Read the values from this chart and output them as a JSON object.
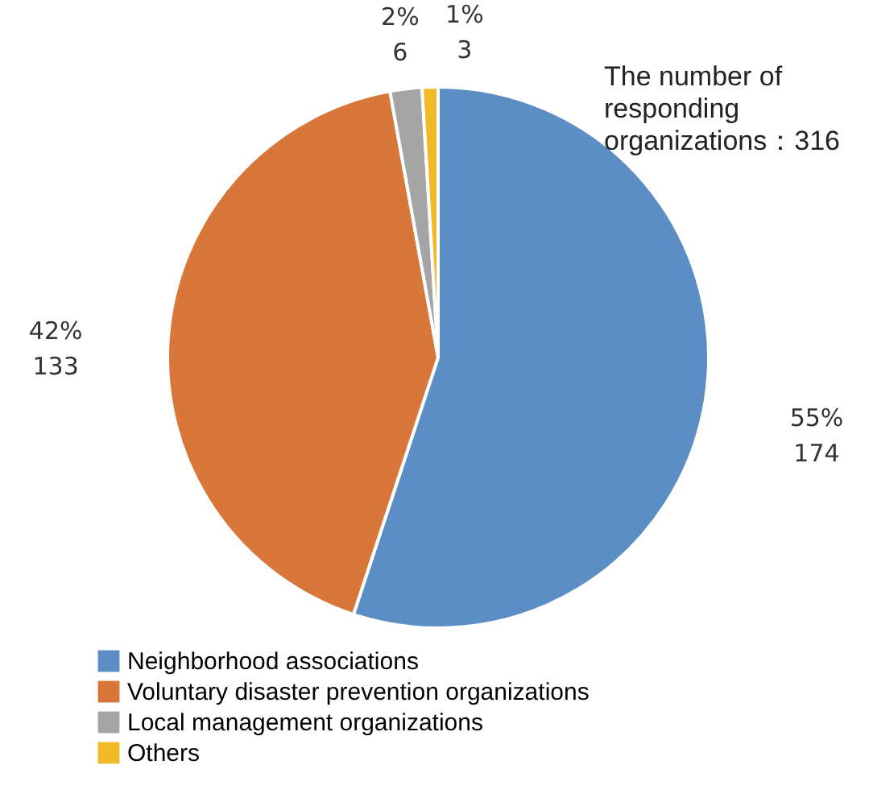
{
  "chart_data": {
    "type": "pie",
    "categories": [
      "Neighborhood associations",
      "Voluntary disaster prevention organizations",
      "Local management organizations",
      "Others"
    ],
    "values": [
      174,
      133,
      6,
      3
    ],
    "colors": [
      "#5b8ec4",
      "#d9773a",
      "#a5a5a5",
      "#f0b928"
    ],
    "value_labels": [
      "55%\n174",
      "42%\n133",
      "2%\n6",
      "1%\n3"
    ],
    "annotations": [
      "The number of\nresponding\norganizations：316"
    ],
    "legend": "bottom"
  }
}
